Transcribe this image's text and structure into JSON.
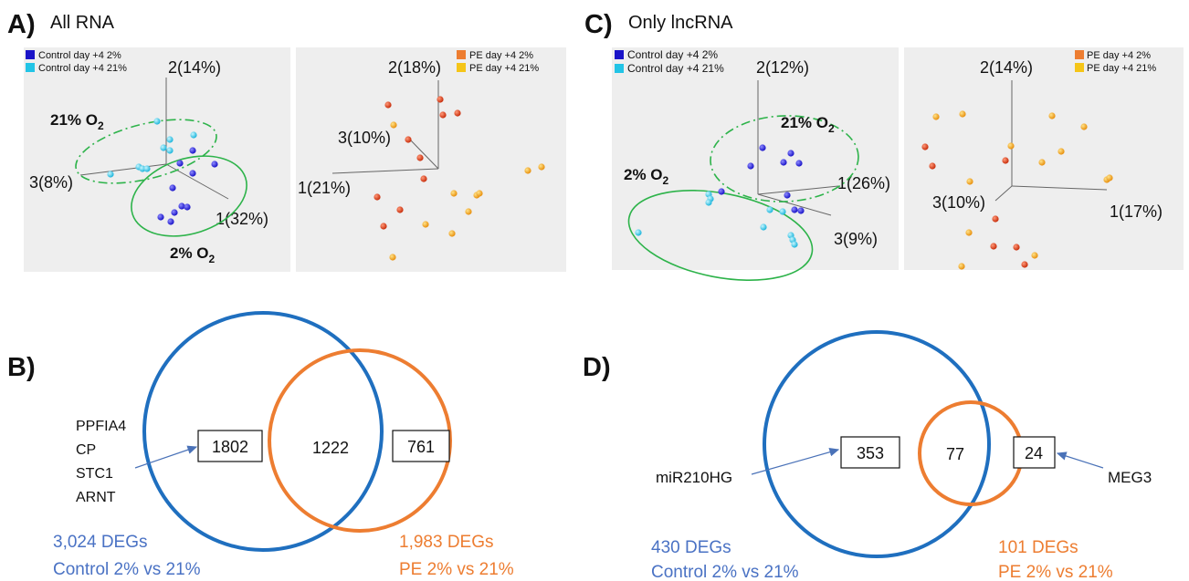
{
  "colors": {
    "control_2": "#1a14c8",
    "control_21": "#22c4e6",
    "pe_2": "#d53a14",
    "pe_21": "#f0a21c",
    "venn_blue": "#1f6fbf",
    "venn_orange": "#ed7d31",
    "ellipse_green": "#2db34a",
    "panel_bg": "#eeeeee"
  },
  "panel_a": {
    "letter": "A)",
    "title": "All RNA",
    "legend_left": [
      "Control day +4 2%",
      "Control day +4 21%"
    ],
    "legend_right": [
      "PE day +4 2%",
      "PE day +4 21%"
    ],
    "left_axes": {
      "ax1": "1(32%)",
      "ax2": "2(14%)",
      "ax3": "3(8%)"
    },
    "right_axes": {
      "ax1": "1(21%)",
      "ax2": "2(18%)",
      "ax3": "3(10%)"
    },
    "label_21": "21% O",
    "label_2": "2% O",
    "sub": "2"
  },
  "panel_c": {
    "letter": "C)",
    "title": "Only lncRNA",
    "legend_left": [
      "Control day +4 2%",
      "Control day +4 21%"
    ],
    "legend_right": [
      "PE day +4 2%",
      "PE day +4 21%"
    ],
    "left_axes": {
      "ax1": "1(26%)",
      "ax2": "2(12%)",
      "ax3": "3(9%)"
    },
    "right_axes": {
      "ax1": "1(17%)",
      "ax2": "2(14%)",
      "ax3": "3(10%)"
    },
    "label_21": "21% O",
    "label_2": "2% O",
    "sub": "2"
  },
  "panel_b": {
    "letter": "B)",
    "left_only": "1802",
    "overlap": "1222",
    "right_only": "761",
    "genes": [
      "PPFIA4",
      "CP",
      "STC1",
      "ARNT"
    ],
    "left_caption": [
      "3,024 DEGs",
      "Control 2% vs 21%"
    ],
    "right_caption": [
      "1,983 DEGs",
      "PE 2% vs 21%"
    ]
  },
  "panel_d": {
    "letter": "D)",
    "left_only": "353",
    "overlap": "77",
    "right_only": "24",
    "left_gene": "miR210HG",
    "right_gene": "MEG3",
    "left_caption": [
      "430 DEGs",
      "Control 2% vs 21%"
    ],
    "right_caption": [
      "101 DEGs",
      "PE 2% vs 21%"
    ]
  }
}
